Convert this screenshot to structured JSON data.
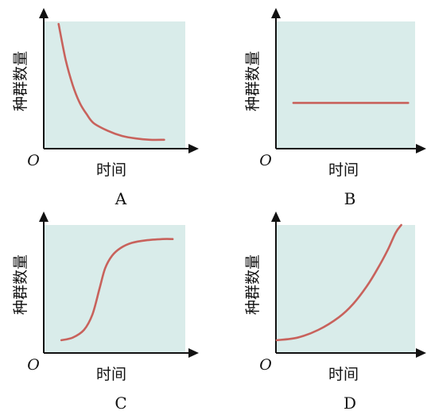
{
  "chart_data": [
    {
      "type": "line",
      "panel_label": "A",
      "ylabel": "种群数量",
      "xlabel": "时间",
      "origin_label": "O",
      "xlim": [
        0,
        10
      ],
      "ylim": [
        0,
        10
      ],
      "series": [
        {
          "x": [
            1.0,
            1.5,
            2.0,
            2.5,
            3.0,
            3.5,
            4.5,
            5.5,
            6.5,
            7.5,
            8.5
          ],
          "y": [
            9.8,
            7.0,
            5.0,
            3.6,
            2.7,
            2.0,
            1.4,
            1.0,
            0.8,
            0.7,
            0.7
          ]
        }
      ]
    },
    {
      "type": "line",
      "panel_label": "B",
      "ylabel": "种群数量",
      "xlabel": "时间",
      "origin_label": "O",
      "xlim": [
        0,
        10
      ],
      "ylim": [
        0,
        10
      ],
      "series": [
        {
          "x": [
            1.2,
            9.5
          ],
          "y": [
            3.6,
            3.6
          ]
        }
      ]
    },
    {
      "type": "line",
      "panel_label": "C",
      "ylabel": "种群数量",
      "xlabel": "时间",
      "origin_label": "O",
      "xlim": [
        0,
        10
      ],
      "ylim": [
        0,
        10
      ],
      "series": [
        {
          "x": [
            1.2,
            2.0,
            2.8,
            3.4,
            3.9,
            4.3,
            4.8,
            5.4,
            6.2,
            7.2,
            8.4,
            9.1
          ],
          "y": [
            1.0,
            1.2,
            1.8,
            3.0,
            5.0,
            6.6,
            7.6,
            8.2,
            8.6,
            8.8,
            8.9,
            8.9
          ]
        }
      ]
    },
    {
      "type": "line",
      "panel_label": "D",
      "ylabel": "种群数量",
      "xlabel": "时间",
      "origin_label": "O",
      "xlim": [
        0,
        10
      ],
      "ylim": [
        0,
        10
      ],
      "series": [
        {
          "x": [
            0.0,
            1.5,
            3.0,
            4.5,
            5.5,
            6.5,
            7.3,
            8.0,
            8.6,
            9.0
          ],
          "y": [
            1.0,
            1.2,
            1.8,
            2.8,
            3.8,
            5.2,
            6.6,
            8.0,
            9.4,
            10.0
          ]
        }
      ]
    }
  ],
  "colors": {
    "plot_background": "#d9ecea",
    "curve": "#c8625c",
    "axis": "#111111"
  }
}
